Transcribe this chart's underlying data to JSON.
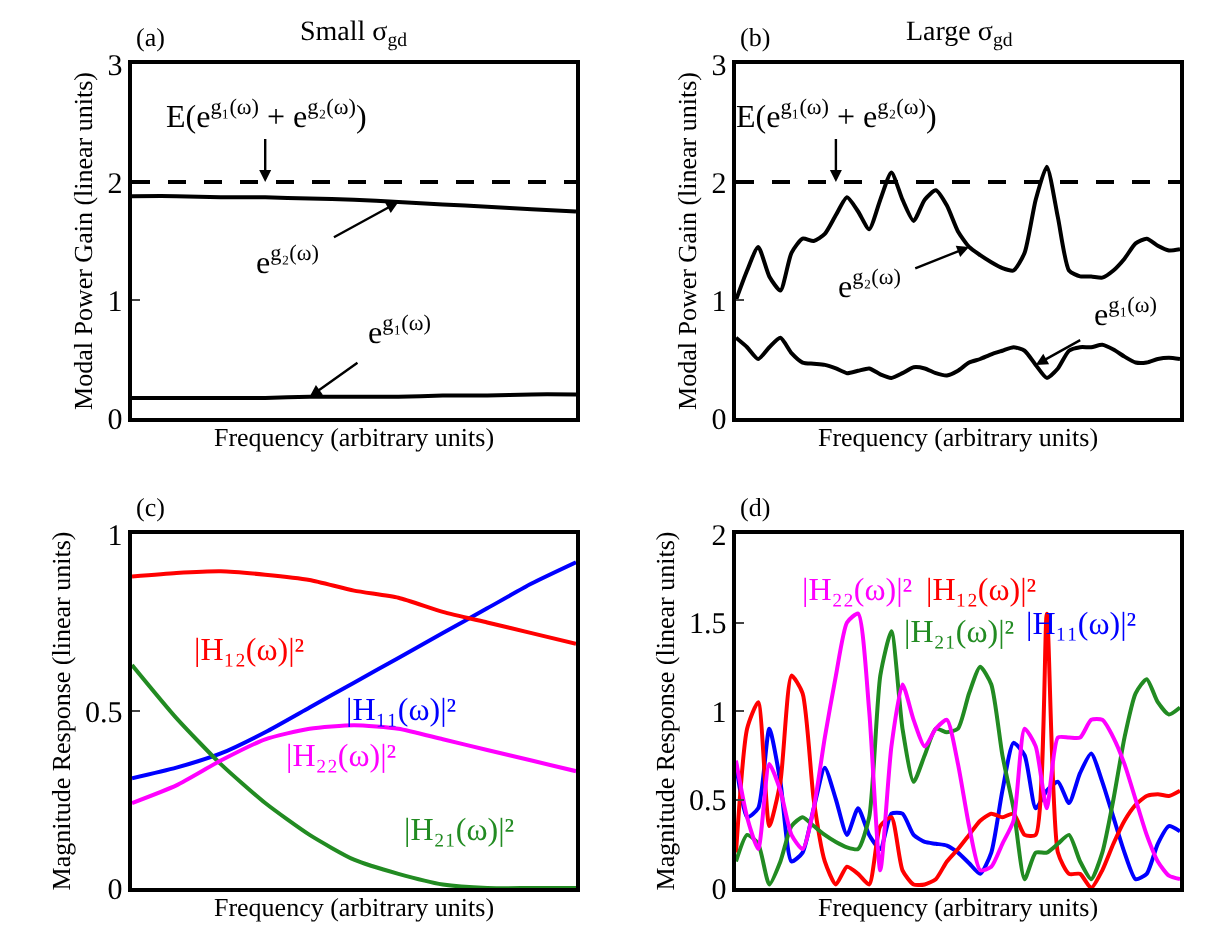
{
  "chart_data": [
    {
      "type": "line",
      "title": "Small σ$_{gd}$",
      "annotations": [
        "(a)"
      ],
      "xlabel": "Frequency (arbitrary units)",
      "ylabel": "Modal Power Gain (linear units)",
      "categories": [
        null,
        null,
        null,
        null,
        null,
        null,
        null,
        null,
        null,
        null,
        null
      ],
      "ylim": [
        0,
        3
      ],
      "yticks": [
        0,
        1,
        2,
        3
      ],
      "tick_labels": "y",
      "grid": false,
      "legend": false,
      "ref_lines": [
        {
          "axis": "y",
          "value": 2,
          "label": "E(e$^{g₁(ω)}$ + e$^{g₂(ω)}$)",
          "color": "#000000",
          "line_style": "dashed"
        }
      ],
      "series": [
        {
          "name": "e$^{g₂(ω)}$",
          "color": "#000000",
          "values": [
            1.88,
            1.88,
            1.87,
            1.87,
            1.86,
            1.85,
            1.83,
            1.81,
            1.79,
            1.77,
            1.75
          ]
        },
        {
          "name": "e$^{g₁(ω)}$",
          "color": "#000000",
          "values": [
            0.17,
            0.17,
            0.17,
            0.17,
            0.18,
            0.18,
            0.18,
            0.19,
            0.19,
            0.2,
            0.2
          ]
        }
      ]
    },
    {
      "type": "line",
      "title": "Large σ$_{gd}$",
      "annotations": [
        "(b)"
      ],
      "xlabel": "Frequency (arbitrary units)",
      "ylabel": "Modal Power Gain (linear units)",
      "categories": [
        null,
        null,
        null,
        null,
        null,
        null,
        null,
        null,
        null,
        null,
        null,
        null,
        null,
        null,
        null,
        null,
        null,
        null,
        null,
        null,
        null,
        null,
        null,
        null,
        null,
        null,
        null,
        null,
        null,
        null,
        null,
        null,
        null,
        null,
        null,
        null,
        null,
        null,
        null,
        null,
        null
      ],
      "ylim": [
        0,
        3
      ],
      "yticks": [
        0,
        1,
        2,
        3
      ],
      "tick_labels": "y",
      "grid": false,
      "legend": false,
      "ref_lines": [
        {
          "axis": "y",
          "value": 2,
          "label": "E(e$^{g₁(ω)}$ + e$^{g₂(ω)}$)",
          "color": "#000000",
          "line_style": "dashed"
        }
      ],
      "series": [
        {
          "name": "e$^{g₂(ω)}$",
          "color": "#000000",
          "values": [
            1.0,
            1.25,
            1.45,
            1.2,
            1.08,
            1.4,
            1.52,
            1.5,
            1.56,
            1.72,
            1.87,
            1.75,
            1.6,
            1.85,
            2.08,
            1.85,
            1.67,
            1.85,
            1.93,
            1.8,
            1.58,
            1.45,
            1.38,
            1.32,
            1.27,
            1.25,
            1.4,
            1.85,
            2.13,
            1.7,
            1.25,
            1.2,
            1.2,
            1.19,
            1.25,
            1.35,
            1.48,
            1.52,
            1.46,
            1.42,
            1.43
          ]
        },
        {
          "name": "e$^{g₁(ω)}$",
          "color": "#000000",
          "values": [
            0.68,
            0.6,
            0.5,
            0.6,
            0.68,
            0.55,
            0.47,
            0.46,
            0.45,
            0.42,
            0.38,
            0.4,
            0.42,
            0.37,
            0.34,
            0.38,
            0.43,
            0.42,
            0.38,
            0.36,
            0.4,
            0.47,
            0.5,
            0.54,
            0.57,
            0.6,
            0.57,
            0.45,
            0.34,
            0.42,
            0.57,
            0.6,
            0.6,
            0.62,
            0.58,
            0.52,
            0.47,
            0.47,
            0.5,
            0.51,
            0.5
          ]
        }
      ]
    },
    {
      "type": "line",
      "annotations": [
        "(c)"
      ],
      "xlabel": "Frequency (arbitrary units)",
      "ylabel": "Magnitude Response (linear units)",
      "categories": [
        null,
        null,
        null,
        null,
        null,
        null,
        null,
        null,
        null,
        null,
        null
      ],
      "ylim": [
        0,
        1
      ],
      "yticks": [
        0,
        0.5,
        1
      ],
      "tick_labels": "y",
      "grid": false,
      "legend": false,
      "series": [
        {
          "name": "|H₁₁(ω)|²",
          "color": "#0000ff",
          "values": [
            0.31,
            0.34,
            0.38,
            0.44,
            0.51,
            0.58,
            0.65,
            0.72,
            0.79,
            0.86,
            0.92
          ]
        },
        {
          "name": "|H₁₂(ω)|²",
          "color": "#ff0000",
          "values": [
            0.88,
            0.89,
            0.895,
            0.885,
            0.87,
            0.84,
            0.82,
            0.78,
            0.75,
            0.72,
            0.69
          ]
        },
        {
          "name": "|H₂₁(ω)|²",
          "color": "#228b22",
          "values": [
            0.63,
            0.48,
            0.35,
            0.24,
            0.15,
            0.08,
            0.04,
            0.01,
            0.0,
            0.0,
            0.0
          ]
        },
        {
          "name": "|H₂₂(ω)|²",
          "color": "#ff00ff",
          "values": [
            0.24,
            0.29,
            0.36,
            0.42,
            0.45,
            0.46,
            0.45,
            0.42,
            0.39,
            0.36,
            0.33
          ]
        }
      ]
    },
    {
      "type": "line",
      "annotations": [
        "(d)"
      ],
      "xlabel": "Frequency (arbitrary units)",
      "ylabel": "Magnitude Response (linear units)",
      "categories": [
        null,
        null,
        null,
        null,
        null,
        null,
        null,
        null,
        null,
        null,
        null,
        null,
        null,
        null,
        null,
        null,
        null,
        null,
        null,
        null,
        null,
        null,
        null,
        null,
        null,
        null,
        null,
        null,
        null,
        null,
        null,
        null,
        null,
        null,
        null,
        null,
        null,
        null,
        null,
        null,
        null
      ],
      "ylim": [
        0,
        2
      ],
      "yticks": [
        0,
        0.5,
        1,
        1.5,
        2
      ],
      "tick_labels": "y",
      "grid": false,
      "legend": false,
      "series": [
        {
          "name": "|H₁₁(ω)|²",
          "color": "#0000ff",
          "values": [
            0.7,
            0.4,
            0.45,
            0.9,
            0.6,
            0.15,
            0.2,
            0.45,
            0.68,
            0.5,
            0.3,
            0.45,
            0.3,
            0.22,
            0.42,
            0.42,
            0.3,
            0.26,
            0.25,
            0.24,
            0.2,
            0.14,
            0.08,
            0.2,
            0.55,
            0.82,
            0.75,
            0.45,
            0.55,
            0.6,
            0.48,
            0.65,
            0.76,
            0.6,
            0.4,
            0.2,
            0.05,
            0.08,
            0.25,
            0.35,
            0.32
          ]
        },
        {
          "name": "|H₁₂(ω)|²",
          "color": "#ff0000",
          "values": [
            0.2,
            0.9,
            1.05,
            0.35,
            0.6,
            1.2,
            1.1,
            0.5,
            0.15,
            0.02,
            0.12,
            0.08,
            0.02,
            0.35,
            0.4,
            0.1,
            0.02,
            0.02,
            0.05,
            0.15,
            0.22,
            0.3,
            0.38,
            0.42,
            0.4,
            0.42,
            0.3,
            0.3,
            1.55,
            0.2,
            0.08,
            0.08,
            0.0,
            0.1,
            0.25,
            0.38,
            0.47,
            0.52,
            0.53,
            0.52,
            0.55
          ]
        },
        {
          "name": "|H₂₁(ω)|²",
          "color": "#228b22",
          "values": [
            0.15,
            0.3,
            0.25,
            0.02,
            0.15,
            0.35,
            0.4,
            0.35,
            0.3,
            0.26,
            0.23,
            0.22,
            0.4,
            1.2,
            1.45,
            0.9,
            0.6,
            0.75,
            0.9,
            0.88,
            0.9,
            1.1,
            1.25,
            1.15,
            0.75,
            0.45,
            0.05,
            0.2,
            0.2,
            0.25,
            0.3,
            0.15,
            0.05,
            0.2,
            0.5,
            0.85,
            1.1,
            1.18,
            1.05,
            0.98,
            1.02
          ]
        },
        {
          "name": "|H₂₂(ω)|²",
          "color": "#ff00ff",
          "values": [
            0.72,
            0.4,
            0.22,
            0.7,
            0.55,
            0.3,
            0.22,
            0.45,
            0.85,
            1.2,
            1.5,
            1.55,
            1.0,
            0.1,
            0.8,
            1.15,
            0.95,
            0.8,
            0.9,
            0.95,
            0.7,
            0.35,
            0.1,
            0.12,
            0.25,
            0.38,
            0.9,
            0.8,
            0.45,
            0.85,
            0.85,
            0.85,
            0.95,
            0.95,
            0.85,
            0.7,
            0.5,
            0.3,
            0.15,
            0.07,
            0.05
          ]
        }
      ]
    }
  ]
}
